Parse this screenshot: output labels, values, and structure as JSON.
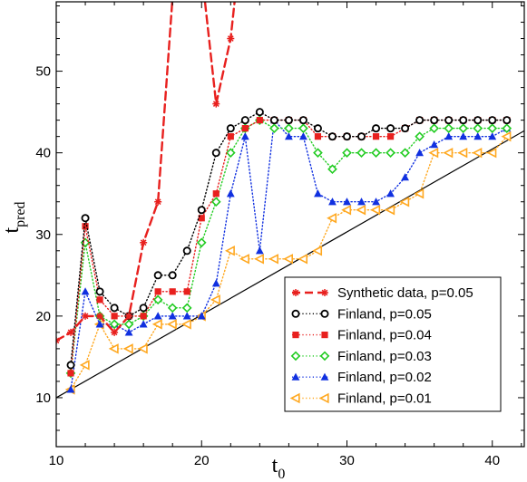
{
  "chart_data": {
    "type": "line",
    "xlabel": "t",
    "xlabel_sub": "0",
    "ylabel": "t",
    "ylabel_sub": "pred",
    "xlim": [
      10,
      42.2
    ],
    "ylim": [
      4,
      58.5
    ],
    "xticks": [
      10,
      20,
      30,
      40
    ],
    "yticks": [
      10,
      20,
      30,
      40,
      50
    ],
    "grid": false,
    "legend_position": "bottom-right",
    "reference_line": {
      "name": "",
      "x": [
        10,
        42.2
      ],
      "y": [
        10,
        42.7
      ],
      "color": "#000000"
    },
    "series": [
      {
        "name": "Synthetic data, p=0.05",
        "color": "#e8201e",
        "marker": "star",
        "style": "dashed",
        "x": [
          10,
          11,
          12,
          13,
          14,
          15,
          16,
          17,
          18,
          20.2,
          21,
          22,
          22.3
        ],
        "y": [
          17,
          18,
          20,
          20,
          18,
          20,
          29,
          34,
          59,
          59,
          46,
          54,
          59
        ]
      },
      {
        "name": "Finland, p=0.05",
        "color": "#000000",
        "marker": "circle-open",
        "style": "dotted",
        "x": [
          11,
          12,
          13,
          14,
          15,
          16,
          17,
          18,
          19,
          20,
          21,
          22,
          23,
          24,
          25,
          26,
          27,
          28,
          29,
          30,
          31,
          32,
          33,
          34,
          35,
          36,
          37,
          38,
          39,
          40,
          41
        ],
        "y": [
          14,
          32,
          23,
          21,
          20,
          21,
          25,
          25,
          28,
          33,
          40,
          43,
          44,
          45,
          44,
          44,
          44,
          43,
          42,
          42,
          42,
          43,
          43,
          43,
          44,
          44,
          44,
          44,
          44,
          44,
          44
        ]
      },
      {
        "name": "Finland, p=0.04",
        "color": "#e8201e",
        "marker": "square",
        "style": "dotted",
        "x": [
          11,
          12,
          13,
          14,
          15,
          16,
          17,
          18,
          19,
          20,
          21,
          22,
          23,
          24,
          25,
          26,
          27,
          28,
          29,
          30,
          31,
          32,
          33,
          34,
          35,
          36,
          37,
          38,
          39,
          40,
          41
        ],
        "y": [
          13,
          31,
          22,
          20,
          20,
          20,
          23,
          23,
          23,
          32,
          35,
          42,
          43,
          44,
          44,
          44,
          44,
          42,
          42,
          42,
          42,
          42,
          42,
          43,
          44,
          44,
          44,
          44,
          44,
          44,
          44
        ]
      },
      {
        "name": "Finland, p=0.03",
        "color": "#22cc22",
        "marker": "diamond-open",
        "style": "dotted",
        "x": [
          11,
          12,
          13,
          14,
          15,
          16,
          17,
          18,
          19,
          20,
          21,
          22,
          23,
          24,
          25,
          26,
          27,
          28,
          29,
          30,
          31,
          32,
          33,
          34,
          35,
          36,
          37,
          38,
          39,
          40,
          41
        ],
        "y": [
          13,
          29,
          20,
          19,
          19,
          20,
          22,
          21,
          21,
          29,
          34,
          40,
          43,
          44,
          43,
          43,
          43,
          40,
          38,
          40,
          40,
          40,
          40,
          40,
          42,
          43,
          43,
          43,
          43,
          43,
          43
        ]
      },
      {
        "name": "Finland, p=0.02",
        "color": "#1030e0",
        "marker": "triangle-up",
        "style": "dotted",
        "x": [
          11,
          12,
          13,
          14,
          15,
          16,
          17,
          18,
          19,
          20,
          21,
          22,
          23,
          24,
          25,
          26,
          27,
          28,
          29,
          30,
          31,
          32,
          33,
          34,
          35,
          36,
          37,
          38,
          39,
          40,
          41
        ],
        "y": [
          11,
          23,
          19,
          19,
          18,
          19,
          20,
          20,
          20,
          20,
          24,
          35,
          42,
          28,
          44,
          42,
          42,
          35,
          34,
          34,
          34,
          34,
          35,
          37,
          40,
          41,
          42,
          42,
          42,
          42,
          43
        ]
      },
      {
        "name": "Finland, p=0.01",
        "color": "#ffa820",
        "marker": "triangle-left",
        "style": "dotted",
        "x": [
          11,
          12,
          13,
          14,
          15,
          16,
          17,
          18,
          19,
          20,
          21,
          22,
          23,
          24,
          25,
          26,
          27,
          28,
          29,
          30,
          31,
          32,
          33,
          34,
          35,
          36,
          37,
          38,
          39,
          40,
          41
        ],
        "y": [
          11,
          14,
          19,
          16,
          16,
          16,
          19,
          19,
          19,
          20,
          22,
          28,
          27,
          27,
          27,
          27,
          27,
          28,
          32,
          33,
          33,
          33,
          33,
          34,
          35,
          40,
          40,
          40,
          40,
          40,
          42
        ]
      }
    ]
  }
}
